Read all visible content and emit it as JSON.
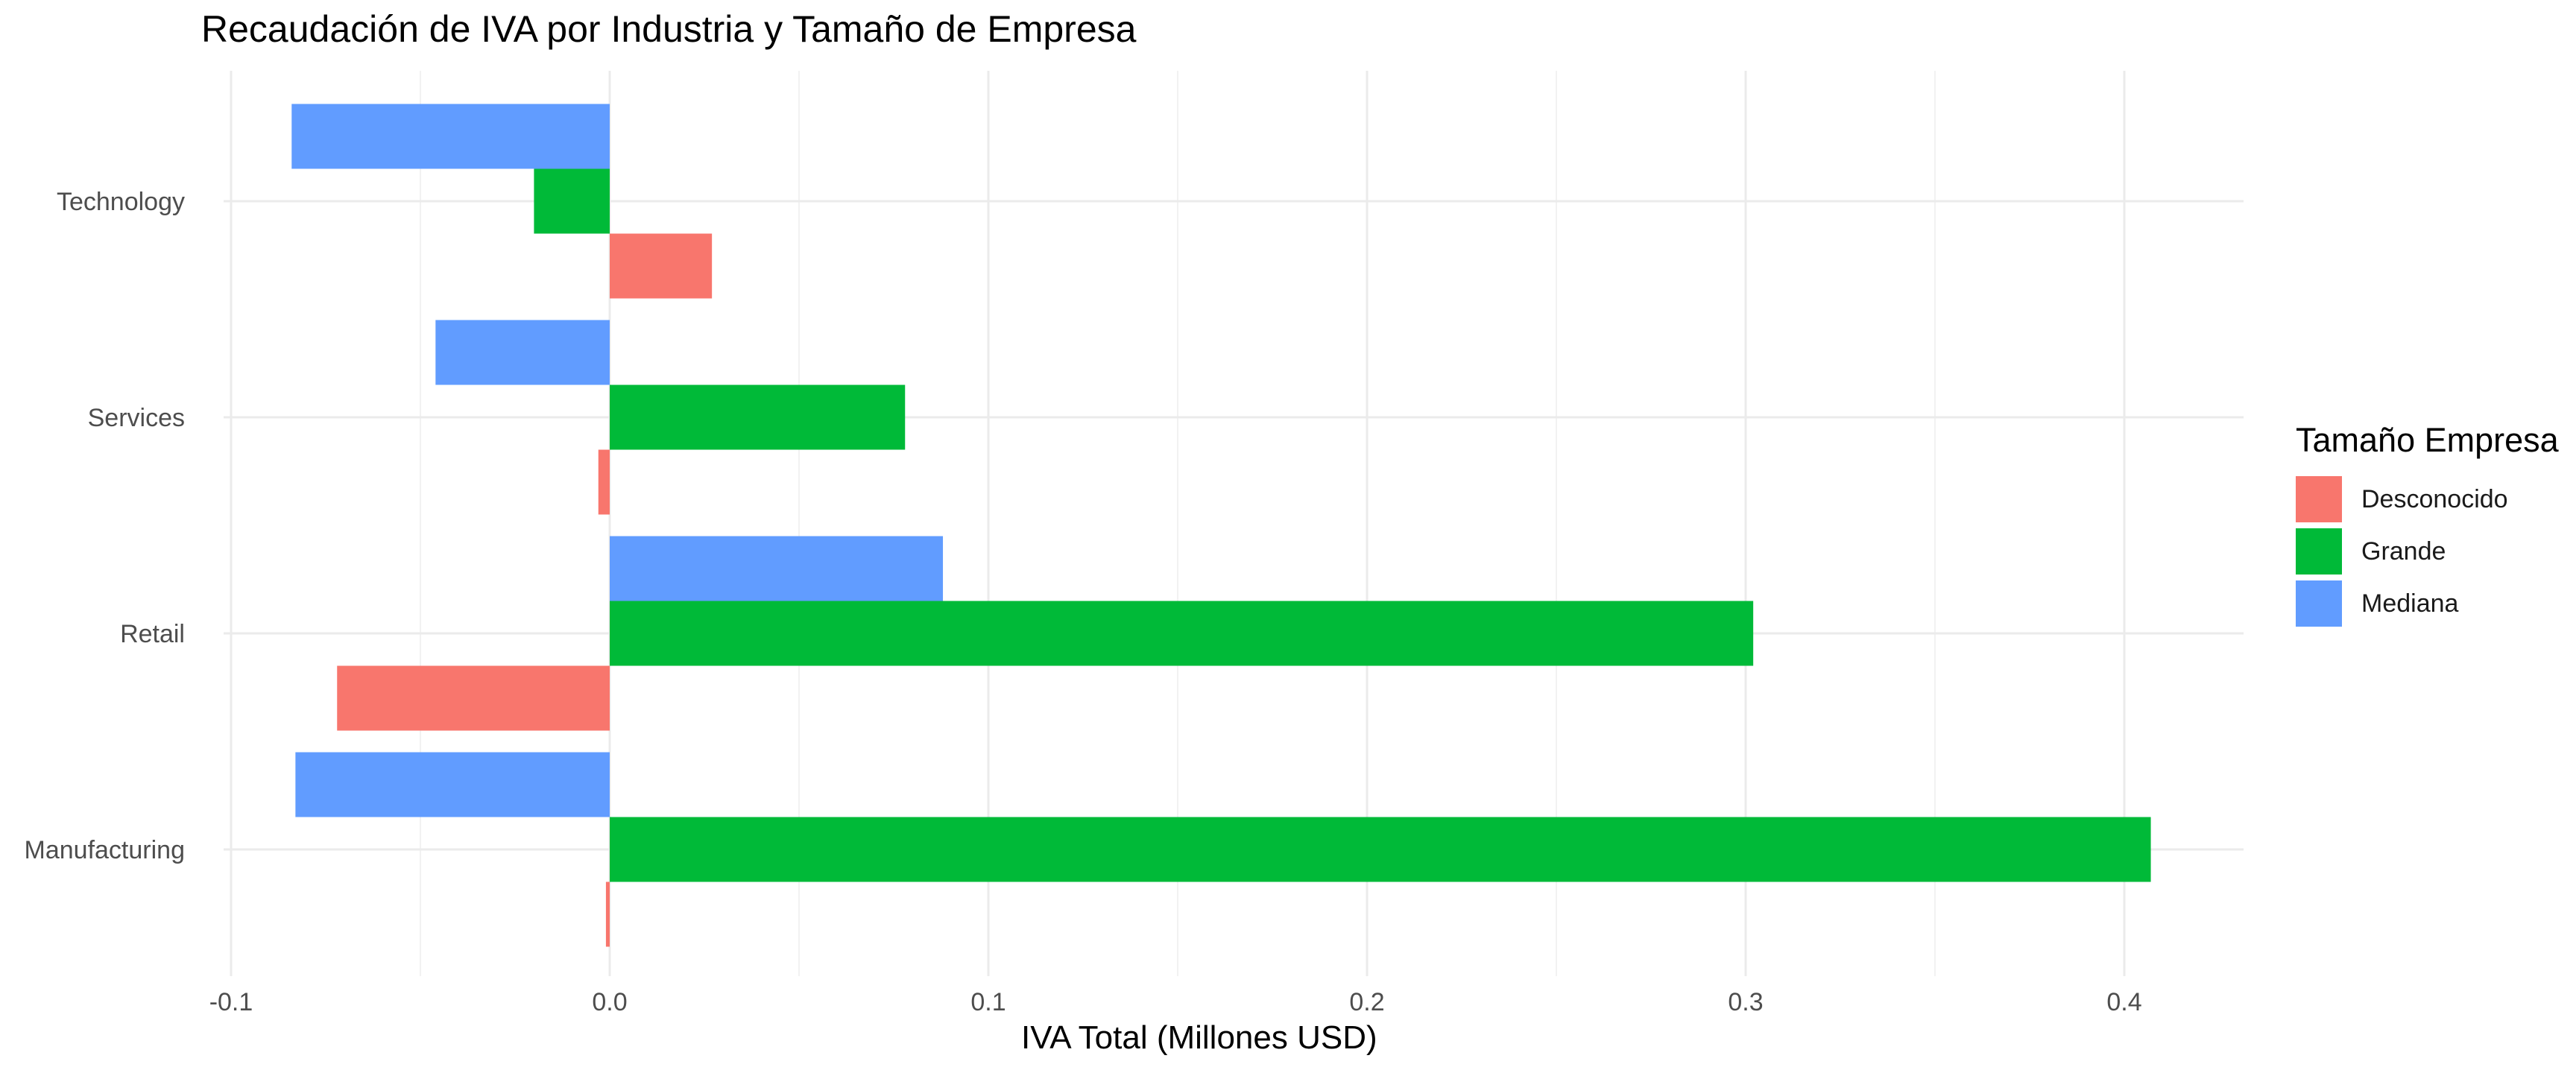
{
  "chart_data": {
    "type": "bar",
    "orientation": "horizontal",
    "title": "Recaudación de IVA por Industria y Tamaño de Empresa",
    "xlabel": "IVA Total (Millones USD)",
    "ylabel": "",
    "xlim": [
      -0.1,
      0.43
    ],
    "x_ticks": [
      {
        "value": -0.1,
        "label": "-0.1"
      },
      {
        "value": 0.0,
        "label": "0.0"
      },
      {
        "value": 0.1,
        "label": "0.1"
      },
      {
        "value": 0.2,
        "label": "0.2"
      },
      {
        "value": 0.3,
        "label": "0.3"
      },
      {
        "value": 0.4,
        "label": "0.4"
      }
    ],
    "categories": [
      "Manufacturing",
      "Retail",
      "Services",
      "Technology"
    ],
    "legend_title": "Tamaño Empresa",
    "legend_position": "right",
    "grid": true,
    "series": [
      {
        "name": "Desconocido",
        "color": "#F8766D",
        "values": [
          -0.001,
          -0.072,
          -0.003,
          0.027
        ]
      },
      {
        "name": "Grande",
        "color": "#00BA38",
        "values": [
          0.407,
          0.302,
          0.078,
          -0.02
        ]
      },
      {
        "name": "Mediana",
        "color": "#619CFF",
        "values": [
          -0.083,
          0.088,
          -0.046,
          -0.084
        ]
      }
    ]
  }
}
